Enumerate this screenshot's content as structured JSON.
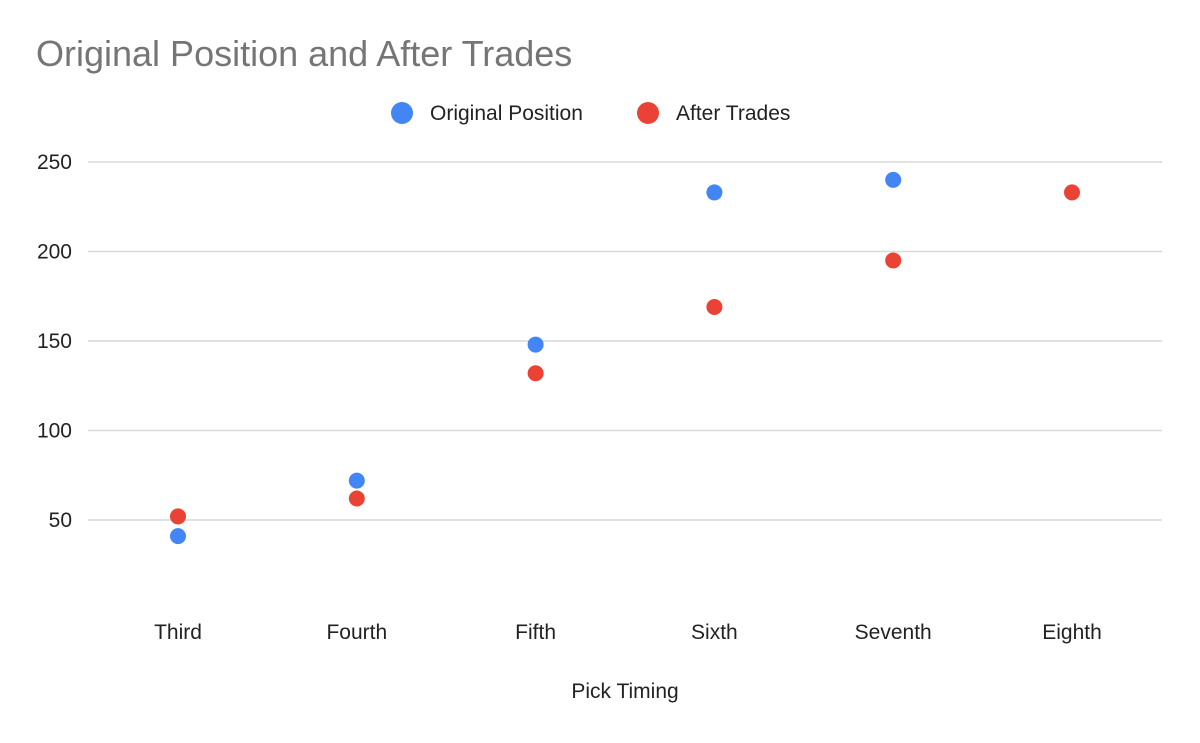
{
  "chart_data": {
    "type": "scatter",
    "title": "Original Position and After Trades",
    "xlabel": "Pick Timing",
    "ylabel": "",
    "categories": [
      "Third",
      "Fourth",
      "Fifth",
      "Sixth",
      "Seventh",
      "Eighth"
    ],
    "y_ticks": [
      50,
      100,
      150,
      200,
      250
    ],
    "ylim": [
      0,
      250
    ],
    "grid": true,
    "legend_position": "top",
    "series": [
      {
        "name": "Original Position",
        "color": "#4285f4",
        "values": [
          41,
          72,
          148,
          233,
          240,
          null
        ]
      },
      {
        "name": "After Trades",
        "color": "#ea4335",
        "values": [
          52,
          62,
          132,
          169,
          195,
          233
        ]
      }
    ]
  }
}
